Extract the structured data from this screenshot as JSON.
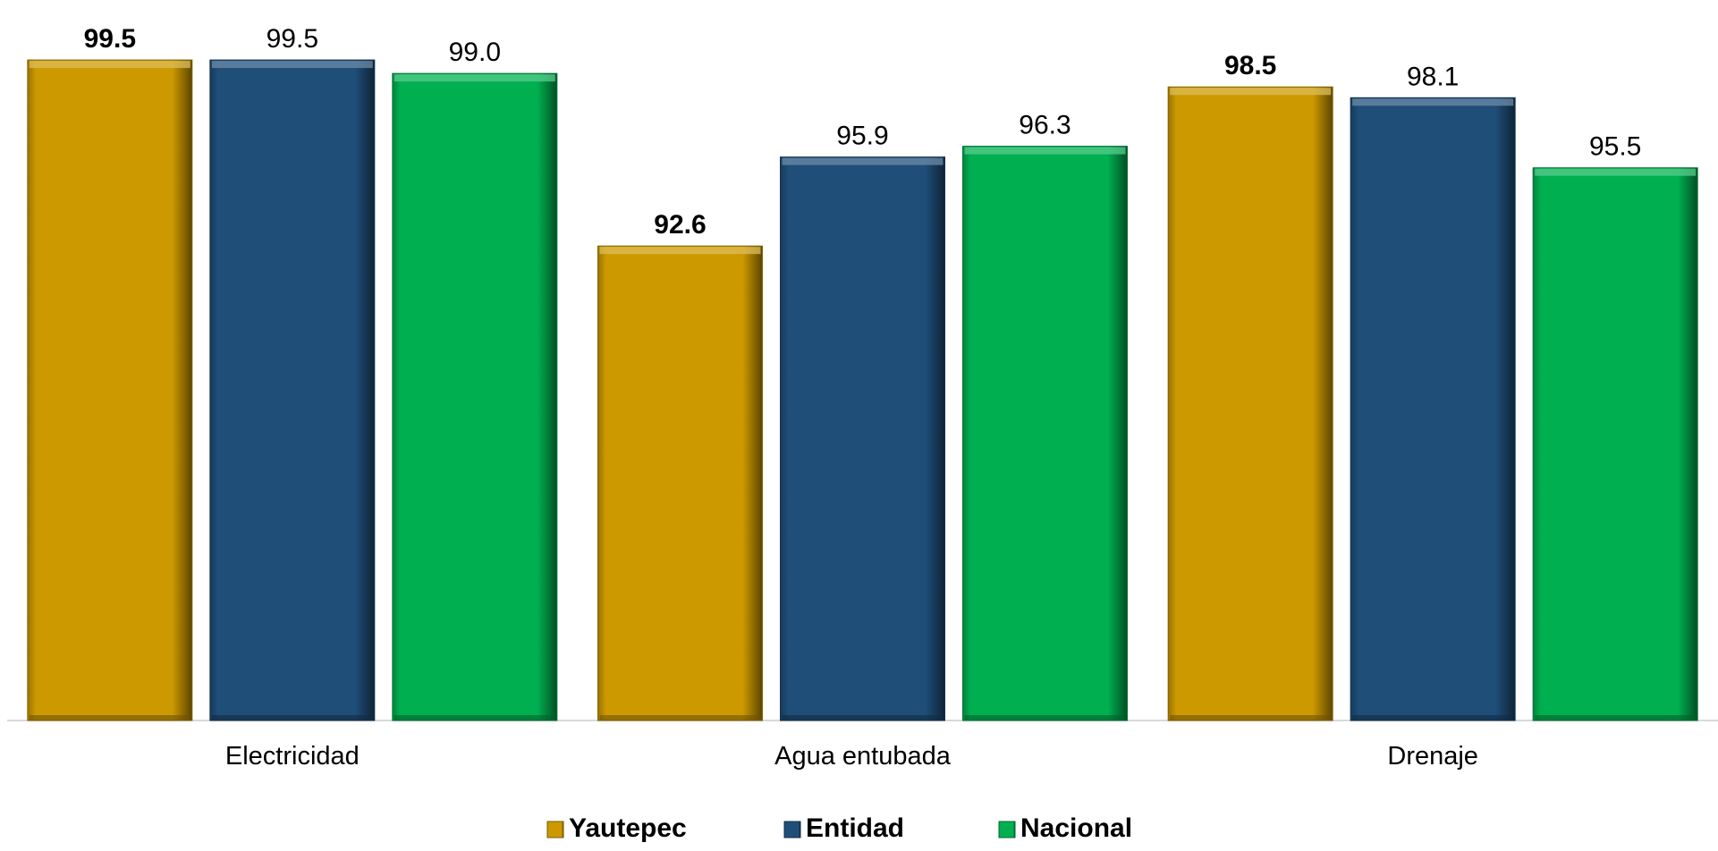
{
  "chart_data": {
    "type": "bar",
    "title": "",
    "xlabel": "",
    "ylabel": "",
    "categories": [
      "Electricidad",
      "Agua entubada",
      "Drenaje"
    ],
    "series": [
      {
        "name": "Yautepec",
        "values": [
          99.5,
          92.6,
          98.5
        ],
        "color": "#CC9900",
        "label_bold": true
      },
      {
        "name": "Entidad",
        "values": [
          99.5,
          95.9,
          98.1
        ],
        "color": "#1F4E79",
        "label_bold": false
      },
      {
        "name": "Nacional",
        "values": [
          99.0,
          96.3,
          95.5
        ],
        "color": "#00B050",
        "label_bold": false
      }
    ],
    "value_labels": [
      [
        "99.5",
        "92.6",
        "98.5"
      ],
      [
        "99.5",
        "95.9",
        "98.1"
      ],
      [
        "99.0",
        "96.3",
        "95.5"
      ]
    ],
    "ylim": [
      75.0,
      100.0
    ],
    "grid": false,
    "legend_position": "bottom-center"
  }
}
